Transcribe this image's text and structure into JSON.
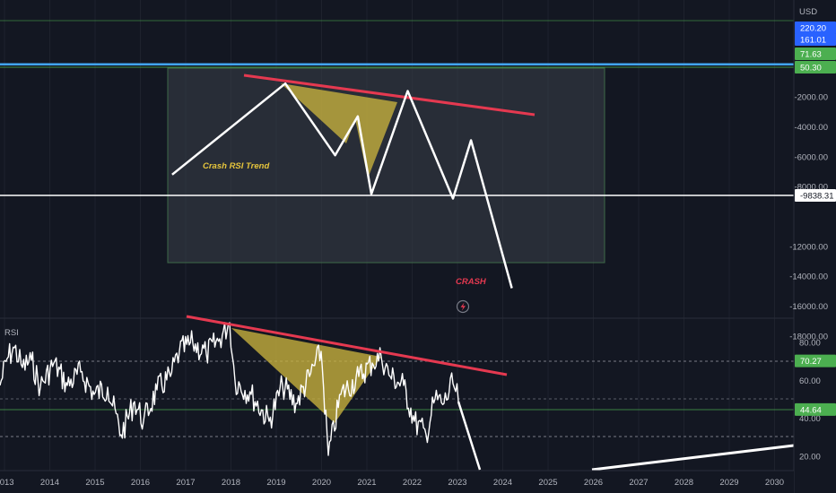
{
  "chart_data": [
    {
      "type": "line",
      "panel": "price",
      "currency": "USD",
      "y_ticks": [
        "-2000.00",
        "-4000.00",
        "-6000.00",
        "-8000.00",
        "-12000.00",
        "-14000.00",
        "-16000.00",
        "-18000.00"
      ],
      "price_badges": [
        {
          "value": "220.20",
          "color": "#2962ff"
        },
        {
          "value": "161.01",
          "color": "#2962ff"
        },
        {
          "value": "71.63",
          "color": "#4caf50"
        },
        {
          "value": "50.30",
          "color": "#4caf50"
        },
        {
          "value": "-9838.31",
          "color": "#ffffff"
        }
      ],
      "annotations": {
        "trend_label": "Crash RSI Trend",
        "crash_label": "CRASH"
      },
      "projection_path": [
        {
          "x": "2016.7",
          "y": -7200
        },
        {
          "x": "2019.2",
          "y": -1100
        },
        {
          "x": "2020.3",
          "y": -5900
        },
        {
          "x": "2020.8",
          "y": -3300
        },
        {
          "x": "2021.1",
          "y": -8500
        },
        {
          "x": "2021.9",
          "y": -1600
        },
        {
          "x": "2022.9",
          "y": -8800
        },
        {
          "x": "2023.3",
          "y": -4900
        },
        {
          "x": "2024.2",
          "y": -14800
        }
      ],
      "colors": {
        "trendline": "#e53950",
        "triangle": "#c9b23e",
        "path": "#ffffff",
        "crash": "#e53950",
        "trend_label": "#e6c53c"
      }
    },
    {
      "type": "line",
      "panel": "indicator",
      "title": "RSI",
      "y_ticks": [
        "80.00",
        "60.00",
        "40.00",
        "20.00"
      ],
      "level_badges": [
        {
          "value": "70.27",
          "color": "#4caf50"
        },
        {
          "value": "44.64",
          "color": "#4caf50"
        }
      ],
      "ylim": [
        15,
        95
      ],
      "x_ticks": [
        "2013",
        "2014",
        "2015",
        "2016",
        "2017",
        "2018",
        "2019",
        "2020",
        "2021",
        "2022",
        "2023",
        "2024",
        "2025",
        "2026",
        "2027",
        "2028",
        "2029",
        "2030"
      ],
      "series_color": "#ffffff",
      "trendline_color": "#e53950"
    }
  ]
}
